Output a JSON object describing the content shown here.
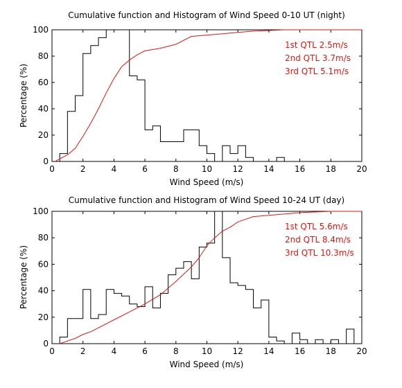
{
  "chart_data": [
    {
      "type": "histogram + cumulative line",
      "title": "Cumulative function and Histogram of Wind Speed 0-10 UT (night)",
      "xlabel": "Wind Speed (m/s)",
      "ylabel": "Percentage (%)",
      "xlim": [
        0,
        20
      ],
      "ylim": [
        0,
        100
      ],
      "xticks": [
        "0",
        "2",
        "4",
        "6",
        "8",
        "10",
        "12",
        "14",
        "16",
        "18",
        "20"
      ],
      "yticks": [
        "0",
        "20",
        "40",
        "60",
        "80",
        "100"
      ],
      "grid": false,
      "annotation_color": "#e8140c",
      "annotations": [
        "1st QTL 2.5m/s",
        "2nd QTL 3.7m/s",
        "3rd QTL 5.1m/s"
      ],
      "histogram": {
        "color": "#000000",
        "edges": [
          0,
          0.5,
          1,
          1.5,
          2,
          2.5,
          3,
          3.5,
          4,
          4.5,
          5,
          5.5,
          6,
          6.5,
          7,
          7.5,
          8,
          8.5,
          9,
          9.5,
          10,
          10.5,
          11,
          11.5,
          12,
          12.5,
          13,
          13.5,
          14,
          14.5,
          15,
          15.5,
          16,
          16.5,
          17,
          17.5,
          18,
          18.5,
          19,
          19.5,
          20
        ],
        "values": [
          0,
          6,
          38,
          50,
          82,
          88,
          94,
          100,
          100,
          100,
          65,
          62,
          24,
          27,
          15,
          15,
          15,
          24,
          24,
          12,
          6,
          0,
          12,
          6,
          12,
          3,
          0,
          0,
          0,
          3,
          0,
          0,
          0,
          0,
          0,
          0,
          0,
          0,
          0,
          0
        ]
      },
      "cumulative": {
        "color": "#e8140c",
        "x": [
          0.2,
          0.5,
          1,
          1.5,
          2,
          2.5,
          3,
          3.5,
          4,
          4.5,
          5,
          5.5,
          6,
          7,
          8,
          9,
          10,
          11,
          12,
          13,
          14,
          15,
          16,
          20
        ],
        "y": [
          0,
          2,
          5,
          10,
          19,
          29,
          40,
          52,
          63,
          72,
          77,
          81,
          84,
          86,
          89,
          95,
          96,
          97,
          98,
          99,
          99.5,
          100,
          100,
          100
        ]
      }
    },
    {
      "type": "histogram + cumulative line",
      "title": "Cumulative function and Histogram of Wind Speed 10-24 UT (day)",
      "xlabel": "Wind Speed (m/s)",
      "ylabel": "Percentage (%)",
      "xlim": [
        0,
        20
      ],
      "ylim": [
        0,
        100
      ],
      "xticks": [
        "0",
        "2",
        "4",
        "6",
        "8",
        "10",
        "12",
        "14",
        "16",
        "18",
        "20"
      ],
      "yticks": [
        "0",
        "20",
        "40",
        "60",
        "80",
        "100"
      ],
      "grid": false,
      "annotation_color": "#e8140c",
      "annotations": [
        "1st QTL 5.6m/s",
        "2nd QTL 8.4m/s",
        "3rd QTL 10.3m/s"
      ],
      "histogram": {
        "color": "#000000",
        "edges": [
          0,
          0.5,
          1,
          1.5,
          2,
          2.5,
          3,
          3.5,
          4,
          4.5,
          5,
          5.5,
          6,
          6.5,
          7,
          7.5,
          8,
          8.5,
          9,
          9.5,
          10,
          10.5,
          11,
          11.5,
          12,
          12.5,
          13,
          13.5,
          14,
          14.5,
          15,
          15.5,
          16,
          16.5,
          17,
          17.5,
          18,
          18.5,
          19,
          19.5,
          20
        ],
        "values": [
          0,
          5,
          19,
          19,
          41,
          19,
          22,
          41,
          38,
          36,
          30,
          28,
          43,
          27,
          38,
          52,
          57,
          62,
          49,
          73,
          76,
          100,
          65,
          46,
          44,
          41,
          27,
          33,
          5,
          2,
          0,
          8,
          3,
          0,
          3,
          0,
          3,
          0,
          11,
          0
        ]
      },
      "cumulative": {
        "color": "#e8140c",
        "x": [
          0.5,
          1,
          1.5,
          2,
          2.5,
          3,
          4,
          5,
          6,
          7,
          8,
          9,
          9.5,
          10,
          10.5,
          11,
          11.5,
          12,
          12.5,
          13,
          14,
          15,
          16,
          18,
          20
        ],
        "y": [
          0,
          2,
          4,
          7,
          9,
          12,
          18,
          24,
          30,
          37,
          47,
          58,
          65,
          74,
          80,
          85,
          88,
          92,
          94,
          96,
          97,
          98,
          99,
          100,
          100
        ]
      }
    }
  ]
}
